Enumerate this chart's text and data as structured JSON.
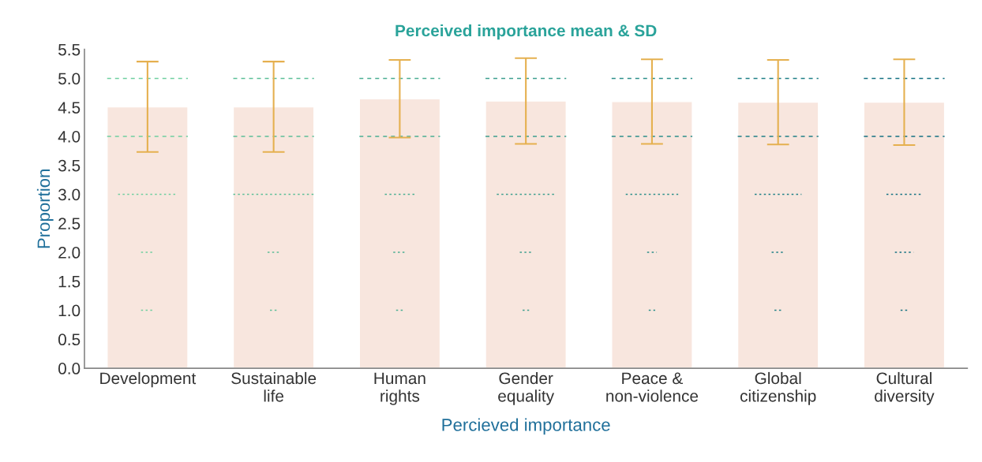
{
  "chart_data": {
    "type": "bar",
    "title": "Perceived importance mean & SD",
    "xlabel": "Percieved importance",
    "ylabel": "Proportion",
    "categories": [
      "Development",
      "Sustainable\nlife",
      "Human\nrights",
      "Gender\nequality",
      "Peace &\nnon-violence",
      "Global\ncitizenship",
      "Cultural\ndiversity"
    ],
    "ylim": [
      0,
      5.5
    ],
    "yticks": [
      {
        "value": 0,
        "label": "0.0"
      },
      0.5,
      {
        "value": 1,
        "label": "1.0"
      },
      1.5,
      {
        "value": 2,
        "label": "2.0"
      },
      2.5,
      {
        "value": 3,
        "label": "3.0"
      },
      3.5,
      {
        "value": 4,
        "label": "4.0"
      },
      4.5,
      {
        "value": 5,
        "label": "5.0"
      },
      5.5
    ],
    "grid": false,
    "legend": false,
    "series": [
      {
        "color": "#f8e6de",
        "values": [
          4.51,
          4.51,
          4.65,
          4.61,
          4.6,
          4.59,
          4.59
        ],
        "errors": [
          0.78,
          0.78,
          0.67,
          0.74,
          0.73,
          0.73,
          0.74
        ]
      }
    ]
  }
}
